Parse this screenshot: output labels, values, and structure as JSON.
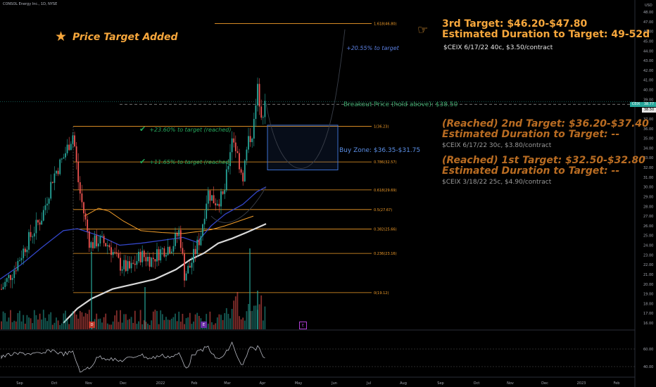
{
  "ticker": "CONSOL Energy Inc., 1D, NYSE",
  "title": "Price Target Added",
  "star_icon": "star-icon",
  "hand_icon": "pointing-hand-icon",
  "target3": {
    "line1": "3rd Target: $46.20-$47.80",
    "line2": "Estimated Duration to Target: 49-52d",
    "contract": "$CEIX 6/17/22 40c, $3.50/contract",
    "pct_label": "+20.55% to target"
  },
  "reached": [
    {
      "line1": "(Reached) 2nd Target: $36.20-$37.40",
      "line2": "Estimated Duration to Target: --",
      "contract": "$CEIX 6/17/22 30c, $3.80/contract"
    },
    {
      "line1": "(Reached) 1st Target: $32.50-$32.80",
      "line2": "Estimated Duration to Target: --",
      "contract": "$CEIX 3/18/22 25c, $4.90/contract"
    }
  ],
  "pct_reached": [
    "+23.60% to target (reached)",
    "+11.65% to target (reached)"
  ],
  "breakout": "Breakout Price (hold above): $38.50",
  "buy_zone": {
    "label": "Buy Zone: $36.35-$31.75",
    "low": 31.75,
    "high": 36.35
  },
  "price_tags": {
    "ticker_tag": "CEIX",
    "last": "38.77",
    "breakout_tag": "38.50"
  },
  "colors": {
    "up": "#26a69a",
    "down": "#ef5350",
    "fib": "#f29d2a",
    "target": "#f7a73c",
    "reached": "#b96c22",
    "ma_white": "#d9d9d9",
    "ma_orange": "#f29d2a",
    "ma_blue": "#3346c8",
    "buy_zone": "#3d6fd1"
  },
  "event_badges": [
    "D",
    "E",
    "E"
  ],
  "chart_data": {
    "type": "candlestick",
    "y_unit": "USD",
    "ylim": [
      15,
      48
    ],
    "y_ticks": [
      "16.00",
      "17.00",
      "18.00",
      "19.00",
      "20.00",
      "21.00",
      "22.00",
      "23.00",
      "24.00",
      "25.00",
      "26.00",
      "27.00",
      "28.00",
      "29.00",
      "30.00",
      "31.00",
      "32.00",
      "33.00",
      "34.00",
      "35.00",
      "36.00",
      "37.00",
      "38.00",
      "39.00",
      "40.00",
      "41.00",
      "42.00",
      "43.00",
      "44.00",
      "45.00",
      "46.00",
      "47.00",
      "48.00"
    ],
    "x_ticks": [
      "Sep",
      "Oct",
      "Nov",
      "Dec",
      "2022",
      "Feb",
      "Mar",
      "Apr",
      "May",
      "Jun",
      "Jul",
      "Aug",
      "Sep",
      "Oct",
      "Nov",
      "Dec",
      "2023",
      "Feb"
    ],
    "rsi_ticks": [
      "60.00",
      "40.00"
    ],
    "fib_levels": [
      {
        "label": "1.618(46.80)",
        "value": 46.8
      },
      {
        "label": "1(36.23)",
        "value": 36.23
      },
      {
        "label": "0.786(32.57)",
        "value": 32.57
      },
      {
        "label": "0.618(29.69)",
        "value": 29.69
      },
      {
        "label": "0.5(27.67)",
        "value": 27.67
      },
      {
        "label": "0.382(25.66)",
        "value": 25.66
      },
      {
        "label": "0.236(23.16)",
        "value": 23.16
      },
      {
        "label": "0(19.12)",
        "value": 19.12
      }
    ],
    "breakout_price": 38.5,
    "last_price": 38.77
  }
}
